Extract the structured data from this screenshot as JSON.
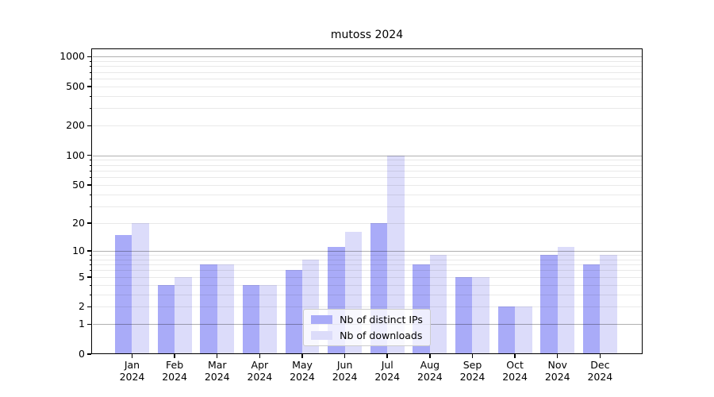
{
  "title": "mutoss 2024",
  "chart_data": {
    "type": "bar",
    "title": "mutoss 2024",
    "categories": [
      "Jan",
      "Feb",
      "Mar",
      "Apr",
      "May",
      "Jun",
      "Jul",
      "Aug",
      "Sep",
      "Oct",
      "Nov",
      "Dec"
    ],
    "year_label": "2024",
    "series": [
      {
        "name": "Nb of distinct IPs",
        "color": "#a9abf8",
        "values": [
          15,
          4,
          7,
          4,
          6,
          11,
          20,
          7,
          5,
          2,
          9,
          7
        ]
      },
      {
        "name": "Nb of downloads",
        "color": "#dcdcfa",
        "values": [
          20,
          5,
          7,
          4,
          8,
          16,
          100,
          9,
          5,
          2,
          11,
          9
        ]
      }
    ],
    "yscale": "log1p",
    "ylim": [
      0,
      1210
    ],
    "yticks": [
      0,
      1,
      2,
      5,
      10,
      20,
      50,
      100,
      200,
      500,
      1000
    ],
    "grid": {
      "major": [
        1,
        10,
        100,
        1000
      ],
      "minor": [
        2,
        3,
        4,
        5,
        6,
        7,
        8,
        9,
        20,
        30,
        40,
        50,
        60,
        70,
        80,
        90,
        200,
        300,
        400,
        500,
        600,
        700,
        800,
        900
      ]
    },
    "legend_position": "lower center",
    "colors": {
      "grid_major": "#b0b0b0",
      "grid_minor": "#e9e9e9",
      "spine": "#000000",
      "background": "#ffffff",
      "legend_border": "#cccccc",
      "text": "#000000"
    }
  }
}
